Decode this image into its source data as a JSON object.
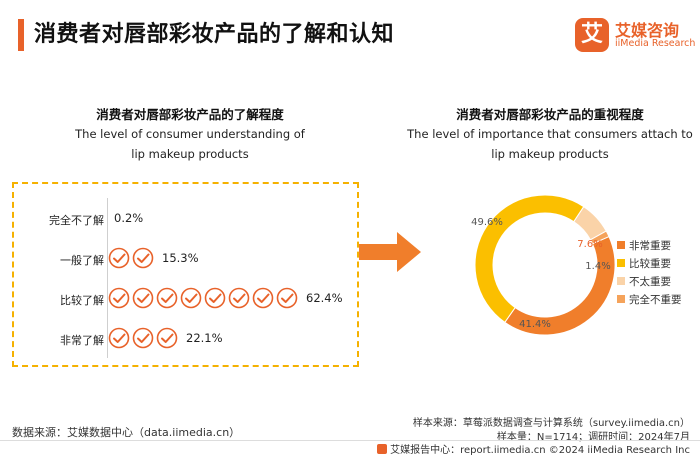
{
  "page_title": "消费者对唇部彩妆产品的了解和认知",
  "logo": {
    "mark": "艾",
    "cn": "艾媒咨询",
    "en": "iiMedia Research"
  },
  "colors": {
    "accent": "#e8622a",
    "dash": "#f5b100"
  },
  "chart_data": [
    {
      "type": "bar",
      "title": "消费者对唇部彩妆产品的了解程度",
      "title_en_line1": "The level of consumer understanding of",
      "title_en_line2": "lip makeup products",
      "categories": [
        "完全不了解",
        "一般了解",
        "比较了解",
        "非常了解"
      ],
      "values": [
        0.2,
        15.3,
        62.4,
        22.1
      ],
      "labels": [
        "0.2%",
        "15.3%",
        "62.4%",
        "22.1%"
      ],
      "icon_counts": [
        0,
        2,
        8,
        3
      ],
      "icon": "check-mark-icon"
    },
    {
      "type": "pie",
      "title": "消费者对唇部彩妆产品的重视程度",
      "title_en_line1": "The level of importance that consumers attach to",
      "title_en_line2": "lip makeup products",
      "categories": [
        "非常重要",
        "比较重要",
        "不太重要",
        "完全不重要"
      ],
      "values": [
        41.4,
        49.6,
        7.6,
        1.4
      ],
      "labels": [
        "41.4%",
        "49.6%",
        "7.6%",
        "1.4%"
      ],
      "colors": [
        "#f07e2b",
        "#fbbf00",
        "#fad3a8",
        "#f5a35b"
      ],
      "legend_position": "right"
    }
  ],
  "source_left": "数据来源：艾媒数据中心（data.iimedia.cn）",
  "source_right_1": "样本来源：草莓派数据调查与计算系统（survey.iimedia.cn）",
  "source_right_2": "样本量：N=1714；调研时间：2024年7月",
  "footer": "艾媒报告中心：report.iimedia.cn   ©2024  iiMedia Research  Inc"
}
